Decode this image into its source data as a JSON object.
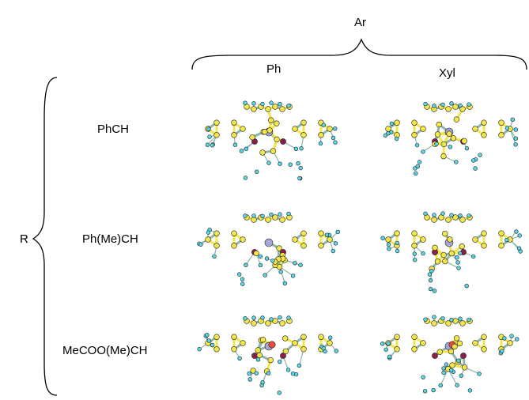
{
  "column_header": "Ar",
  "columns": [
    {
      "label": "Ph"
    },
    {
      "label": "Xyl"
    }
  ],
  "row_header": "R",
  "rows": [
    {
      "label": "PhCH"
    },
    {
      "label": "Ph(Me)CH"
    },
    {
      "label": "MeCOO(Me)CH"
    }
  ],
  "colors": {
    "carbon": "#f2e64a",
    "hydrogen": "#58d8e6",
    "phosphorus": "#8a1e4d",
    "metal": "#a6a6d6",
    "oxygen": "#e84c3d",
    "bond": "#8fb5ab"
  }
}
